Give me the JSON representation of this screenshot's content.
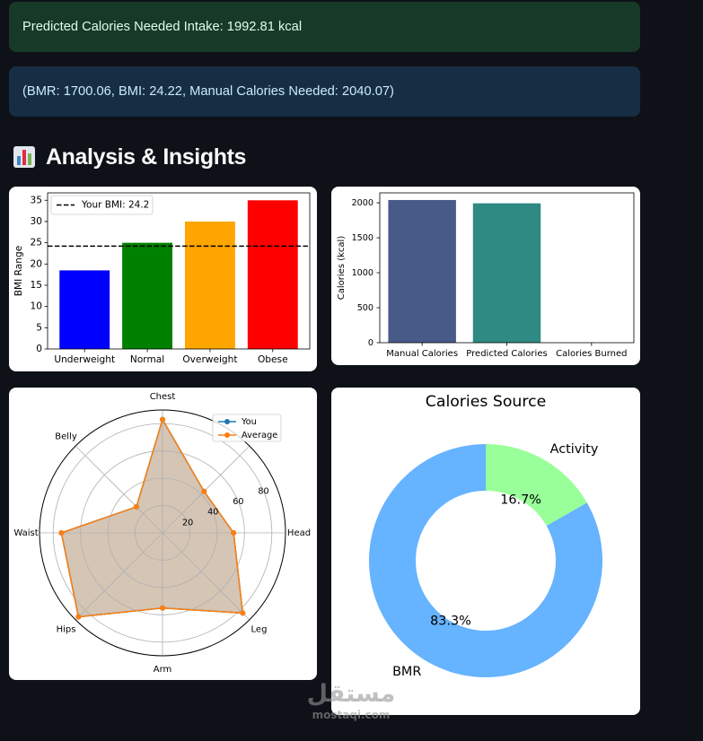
{
  "alerts": {
    "success": "Predicted Calories Needed Intake: 1992.81 kcal",
    "info": "(BMR: 1700.06, BMI: 24.22, Manual Calories Needed: 2040.07)"
  },
  "section": {
    "icon": "bar-chart-icon",
    "title": "Analysis & Insights"
  },
  "colors": {
    "background": "#0e1117",
    "success_bg": "#173a28",
    "success_text": "#dffde9",
    "info_bg": "#172d43",
    "info_text": "#c7ebff"
  },
  "chart_data": [
    {
      "type": "bar",
      "categories": [
        "Underweight",
        "Normal",
        "Overweight",
        "Obese"
      ],
      "values": [
        18.5,
        25,
        30,
        35
      ],
      "colors": [
        "#0000ff",
        "#008000",
        "#ffa500",
        "#ff0000"
      ],
      "xlabel": "",
      "ylabel": "BMI Range",
      "xlim": [
        -0.59,
        3.59
      ],
      "ylim": [
        0,
        36.75
      ],
      "yticks": [
        0,
        5,
        10,
        15,
        20,
        25,
        30,
        35
      ],
      "reference_line": {
        "label": "Your BMI: 24.2",
        "value": 24.2,
        "color": "#000000"
      },
      "legend": "top-left",
      "grid": false
    },
    {
      "type": "bar",
      "categories": [
        "Manual Calories",
        "Predicted Calories",
        "Calories Burned"
      ],
      "values": [
        2040.07,
        1992.81,
        0
      ],
      "colors": [
        "#485a88",
        "#2e8a82",
        "#71bd68"
      ],
      "xlabel": "",
      "ylabel": "Calories (kcal)",
      "xlim": [
        -0.5,
        2.5
      ],
      "ylim": [
        0,
        2142.07
      ],
      "yticks": [
        0,
        500,
        1000,
        1500,
        2000
      ],
      "grid": false
    },
    {
      "type": "line",
      "projection": "polar",
      "categories": [
        "Chest",
        null,
        "Head",
        "Leg",
        "Arm",
        "Hips",
        "Waist",
        "Belly"
      ],
      "series": [
        {
          "name": "You",
          "color": "#1f77b4",
          "values": [
            83,
            43,
            52,
            83,
            55,
            87,
            74,
            27
          ]
        },
        {
          "name": "Average",
          "color": "#ff7f0e",
          "values": [
            83,
            43,
            52,
            83,
            55,
            87,
            74,
            27
          ]
        }
      ],
      "rticks": [
        20,
        40,
        60,
        80
      ],
      "rmax": 90,
      "legend": "top-right",
      "grid": true
    },
    {
      "type": "pie",
      "title": "Calories Source",
      "labels": [
        "BMR",
        "Activity"
      ],
      "values": [
        83.3,
        16.7
      ],
      "colors": [
        "#66b3ff",
        "#99ff99"
      ]
    }
  ],
  "watermark": {
    "arabic": "مستقل",
    "latin": "mostaqi.com"
  }
}
